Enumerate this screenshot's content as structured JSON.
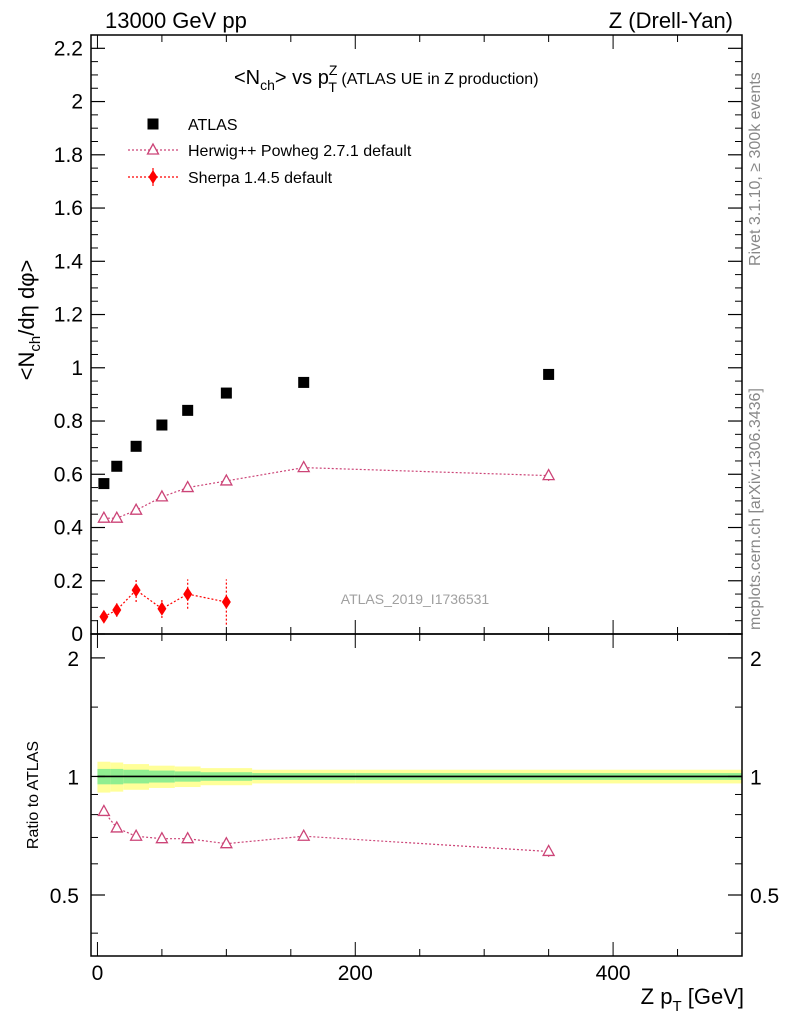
{
  "header": {
    "left": "13000 GeV pp",
    "right": "Z (Drell-Yan)"
  },
  "side": {
    "top": "Rivet 3.1.10, ≥ 300k events",
    "bottom": "mcplots.cern.ch [arXiv:1306.3436]"
  },
  "chart_data": [
    {
      "type": "scatter",
      "title": "<N_ch> vs p_T^Z (ATLAS UE in Z production)",
      "ylabel": "<N_ch/dη dφ>",
      "xlim": [
        -5,
        500
      ],
      "ylim": [
        0,
        2.25
      ],
      "y_ticks": [
        "0",
        "0.2",
        "0.4",
        "0.6",
        "0.8",
        "1",
        "1.2",
        "1.4",
        "1.6",
        "1.8",
        "2",
        "2.2"
      ],
      "watermark": "ATLAS_2019_I1736531",
      "legend_position": "top-left",
      "series": [
        {
          "name": "ATLAS",
          "color": "#000000",
          "marker": "square",
          "x": [
            5,
            15,
            30,
            50,
            70,
            100,
            160,
            350
          ],
          "y": [
            0.565,
            0.63,
            0.705,
            0.785,
            0.84,
            0.905,
            0.945,
            0.975
          ]
        },
        {
          "name": "Herwig++ Powheg 2.7.1 default",
          "color": "#cc4477",
          "marker": "open-triangle",
          "x": [
            5,
            15,
            30,
            50,
            70,
            100,
            160,
            350
          ],
          "y": [
            0.435,
            0.435,
            0.465,
            0.515,
            0.55,
            0.575,
            0.625,
            0.595
          ],
          "yerr": [
            0.005,
            0.005,
            0.008,
            0.008,
            0.01,
            0.01,
            0.01,
            0.02
          ]
        },
        {
          "name": "Sherpa 1.4.5 default",
          "color": "#ff0000",
          "marker": "diamond",
          "x": [
            5,
            15,
            30,
            50,
            70,
            100
          ],
          "y": [
            0.065,
            0.09,
            0.165,
            0.095,
            0.15,
            0.12
          ],
          "yerr": [
            0.015,
            0.025,
            0.045,
            0.035,
            0.055,
            0.085
          ]
        }
      ]
    },
    {
      "type": "line",
      "ylabel": "Ratio to ATLAS",
      "xlabel": "Z p_T [GeV]",
      "xlim": [
        -5,
        500
      ],
      "ylim": [
        0.35,
        2.3
      ],
      "x_ticks": [
        "0",
        "200",
        "400"
      ],
      "y_ticks": [
        "0.5",
        "1",
        "2"
      ],
      "bands": {
        "green": {
          "color": "#90ee90",
          "edges": [
            0,
            10,
            20,
            40,
            60,
            80,
            120,
            200,
            500
          ],
          "lo": [
            0.955,
            0.955,
            0.96,
            0.965,
            0.97,
            0.975,
            0.98,
            0.98
          ],
          "hi": [
            1.045,
            1.045,
            1.04,
            1.035,
            1.03,
            1.025,
            1.02,
            1.02
          ]
        },
        "yellow": {
          "color": "#ffff99",
          "edges": [
            0,
            10,
            20,
            40,
            60,
            80,
            120,
            200,
            500
          ],
          "lo": [
            0.91,
            0.915,
            0.925,
            0.935,
            0.94,
            0.95,
            0.96,
            0.96
          ],
          "hi": [
            1.09,
            1.085,
            1.075,
            1.065,
            1.06,
            1.05,
            1.04,
            1.04
          ]
        }
      },
      "series": [
        {
          "name": "Herwig++ Powheg 2.7.1 default",
          "color": "#cc4477",
          "x": [
            5,
            15,
            30,
            50,
            70,
            100,
            160,
            350
          ],
          "y": [
            0.815,
            0.74,
            0.705,
            0.695,
            0.695,
            0.675,
            0.705,
            0.645
          ],
          "yerr": [
            0.01,
            0.01,
            0.01,
            0.01,
            0.01,
            0.01,
            0.01,
            0.02
          ]
        }
      ]
    }
  ]
}
